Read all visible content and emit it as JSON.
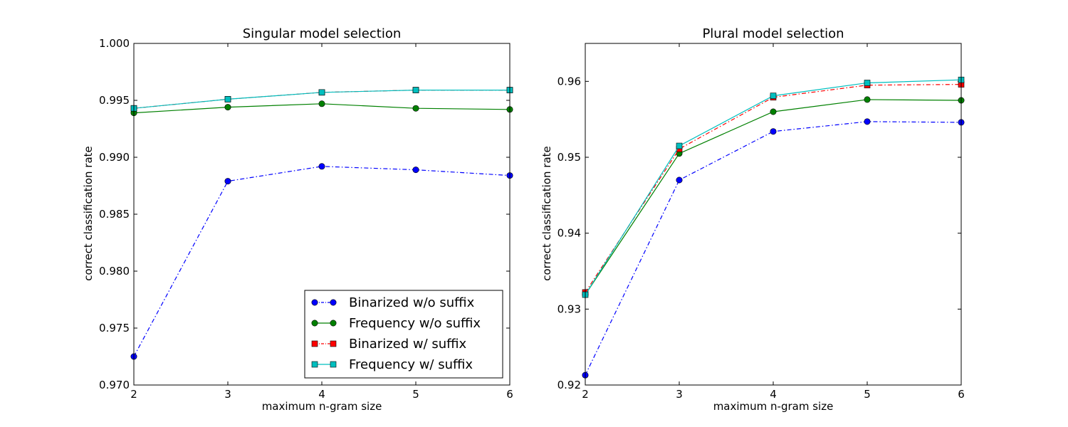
{
  "chart_data": [
    {
      "type": "line",
      "title": "Singular model selection",
      "xlabel": "maximum n-gram size",
      "ylabel": "correct classification rate",
      "x": [
        2,
        3,
        4,
        5,
        6
      ],
      "xlim": [
        2,
        6
      ],
      "ylim": [
        0.97,
        1.0
      ],
      "xticks": [
        "2",
        "3",
        "4",
        "5",
        "6"
      ],
      "yticks": [
        "0.970",
        "0.975",
        "0.980",
        "0.985",
        "0.990",
        "0.995",
        "1.000"
      ],
      "grid": false,
      "legend": {
        "show": true,
        "position": "lower-right"
      },
      "series": [
        {
          "name": "Binarized w/o suffix",
          "color": "#0000ff",
          "linestyle": "dashdot",
          "marker": "circle",
          "values": [
            0.9725,
            0.9879,
            0.9892,
            0.9889,
            0.9884
          ]
        },
        {
          "name": "Frequency w/o suffix",
          "color": "#008000",
          "linestyle": "solid",
          "marker": "circle",
          "values": [
            0.9939,
            0.9944,
            0.9947,
            0.9943,
            0.9942
          ]
        },
        {
          "name": "Binarized w/ suffix",
          "color": "#ff0000",
          "linestyle": "dashdot",
          "marker": "square",
          "values": [
            0.9943,
            0.9951,
            0.9957,
            0.9959,
            0.9959
          ]
        },
        {
          "name": "Frequency w/ suffix",
          "color": "#00bfbf",
          "linestyle": "solid",
          "marker": "square",
          "values": [
            0.9943,
            0.9951,
            0.9957,
            0.9959,
            0.9959
          ]
        }
      ]
    },
    {
      "type": "line",
      "title": "Plural model selection",
      "xlabel": "maximum n-gram size",
      "ylabel": "correct classification rate",
      "x": [
        2,
        3,
        4,
        5,
        6
      ],
      "xlim": [
        2,
        6
      ],
      "ylim": [
        0.92,
        0.965
      ],
      "xticks": [
        "2",
        "3",
        "4",
        "5",
        "6"
      ],
      "yticks": [
        "0.92",
        "0.93",
        "0.94",
        "0.95",
        "0.96"
      ],
      "grid": false,
      "legend": {
        "show": false
      },
      "series": [
        {
          "name": "Binarized w/o suffix",
          "color": "#0000ff",
          "linestyle": "dashdot",
          "marker": "circle",
          "values": [
            0.9213,
            0.947,
            0.9534,
            0.9547,
            0.9546
          ]
        },
        {
          "name": "Frequency w/o suffix",
          "color": "#008000",
          "linestyle": "solid",
          "marker": "circle",
          "values": [
            0.9319,
            0.9505,
            0.956,
            0.9576,
            0.9575
          ]
        },
        {
          "name": "Binarized w/ suffix",
          "color": "#ff0000",
          "linestyle": "dashdot",
          "marker": "square",
          "values": [
            0.9322,
            0.9511,
            0.9579,
            0.9595,
            0.9596
          ]
        },
        {
          "name": "Frequency w/ suffix",
          "color": "#00bfbf",
          "linestyle": "solid",
          "marker": "square",
          "values": [
            0.9319,
            0.9515,
            0.9581,
            0.9598,
            0.9602
          ]
        }
      ]
    }
  ]
}
